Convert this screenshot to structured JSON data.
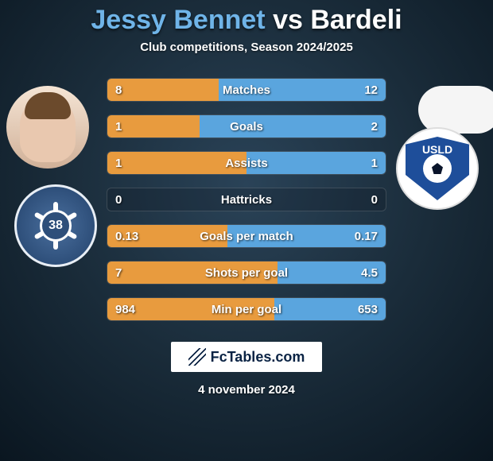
{
  "title": {
    "player1_name": "Jessy Bennet",
    "vs_text": "vs",
    "player2_name": "Bardeli",
    "player1_color": "#6fb4e8",
    "vs_color": "#ffffff",
    "player2_color": "#ffffff"
  },
  "subtitle": "Club competitions, Season 2024/2025",
  "bar_colors": {
    "left": "#e89b3e",
    "right": "#5aa5de",
    "track": "rgba(10,20,30,0.25)"
  },
  "stats": [
    {
      "label": "Matches",
      "left_val": "8",
      "right_val": "12",
      "left_pct": 40,
      "right_pct": 60
    },
    {
      "label": "Goals",
      "left_val": "1",
      "right_val": "2",
      "left_pct": 33,
      "right_pct": 67
    },
    {
      "label": "Assists",
      "left_val": "1",
      "right_val": "1",
      "left_pct": 50,
      "right_pct": 50
    },
    {
      "label": "Hattricks",
      "left_val": "0",
      "right_val": "0",
      "left_pct": 0,
      "right_pct": 0
    },
    {
      "label": "Goals per match",
      "left_val": "0.13",
      "right_val": "0.17",
      "left_pct": 43,
      "right_pct": 57
    },
    {
      "label": "Shots per goal",
      "left_val": "7",
      "right_val": "4.5",
      "left_pct": 61,
      "right_pct": 39
    },
    {
      "label": "Min per goal",
      "left_val": "984",
      "right_val": "653",
      "left_pct": 60,
      "right_pct": 40
    }
  ],
  "left_club_text": "38",
  "right_club_text": "USLD",
  "footer_brand": "FcTables.com",
  "date_text": "4 november 2024"
}
